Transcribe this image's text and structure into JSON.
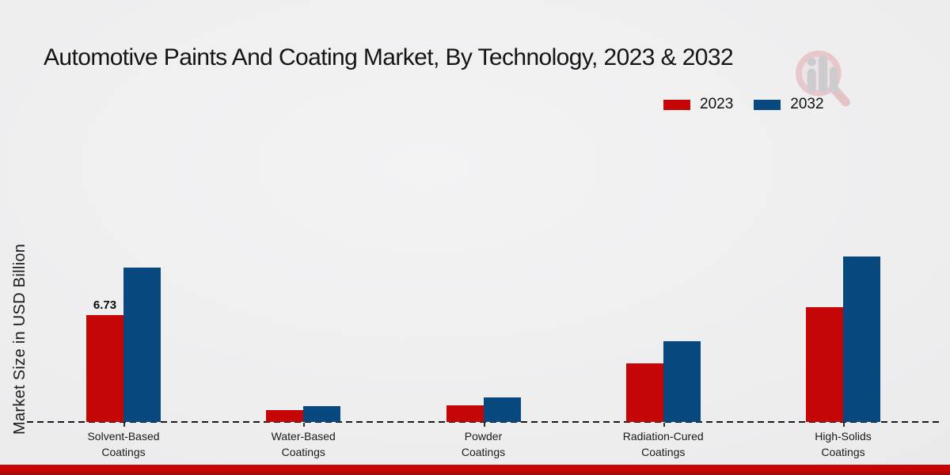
{
  "title": "Automotive Paints And Coating Market, By Technology, 2023 & 2032",
  "y_axis_label": "Market Size in USD Billion",
  "icons": {
    "logo_watermark": "magnifier-bar-chart-logo"
  },
  "colors": {
    "series_2023": "#c40606",
    "series_2032": "#07497e",
    "bottom_strip": "#c40606",
    "baseline": "#1a1a1a"
  },
  "chart_data": {
    "type": "bar",
    "title": "Automotive Paints And Coating Market, By Technology, 2023 & 2032",
    "xlabel": "",
    "ylabel": "Market Size in USD Billion",
    "categories": [
      "Solvent-Based Coatings",
      "Water-Based Coatings",
      "Powder Coatings",
      "Radiation-Cured Coatings",
      "High-Solids Coatings"
    ],
    "series": [
      {
        "name": "2023",
        "color": "#c40606",
        "values": [
          6.73,
          0.75,
          1.05,
          3.7,
          7.25
        ]
      },
      {
        "name": "2032",
        "color": "#07497e",
        "values": [
          9.72,
          1.0,
          1.55,
          5.08,
          10.42
        ]
      }
    ],
    "bar_labels": [
      {
        "series": 0,
        "category": 0,
        "text": "6.73"
      }
    ],
    "ylim": [
      0,
      10.5
    ],
    "grid": false,
    "axis_line_style": "dashed",
    "legend_position": "top-right"
  }
}
